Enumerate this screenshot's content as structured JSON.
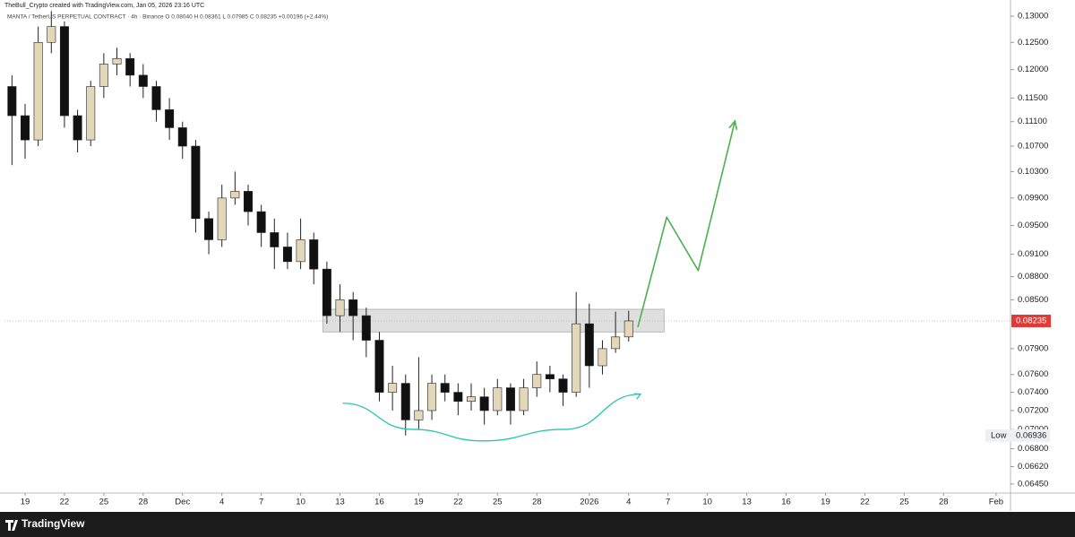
{
  "chart_data": {
    "type": "candlestick",
    "title": "TheBull_Crypto created with TradingView.com, Jan 05, 2026 23:16 UTC",
    "subtitle": "MANTA / TetherUS PERPETUAL CONTRACT · 4h · Binance  O 0.08040  H 0.08361  L 0.07985  C 0.08235  +0.00196 (+2.44%)",
    "brand": "TradingView",
    "log_scale": true,
    "up_color": "#e3d7b9",
    "down_color": "#111111",
    "x": [
      -1,
      0,
      1,
      2,
      3,
      4,
      5,
      6,
      7,
      8,
      9,
      10,
      11,
      12,
      13,
      14,
      15,
      16,
      17,
      18,
      19,
      20,
      21,
      22,
      23,
      24,
      25,
      26,
      27,
      28,
      29,
      30,
      31,
      32,
      33,
      34,
      35,
      36,
      37,
      38,
      39,
      40,
      41,
      42,
      43,
      44,
      45,
      46
    ],
    "open": [
      0.117,
      0.112,
      0.108,
      0.125,
      0.128,
      0.112,
      0.108,
      0.117,
      0.121,
      0.122,
      0.119,
      0.117,
      0.113,
      0.11,
      0.107,
      0.096,
      0.093,
      0.099,
      0.1,
      0.097,
      0.094,
      0.092,
      0.09,
      0.093,
      0.089,
      0.083,
      0.085,
      0.083,
      0.08,
      0.074,
      0.075,
      0.071,
      0.072,
      0.075,
      0.074,
      0.073,
      0.0735,
      0.072,
      0.0745,
      0.072,
      0.0745,
      0.076,
      0.0755,
      0.074,
      0.082,
      0.077,
      0.079,
      0.0804
    ],
    "high": [
      0.119,
      0.114,
      0.128,
      0.131,
      0.129,
      0.113,
      0.118,
      0.123,
      0.124,
      0.123,
      0.121,
      0.118,
      0.115,
      0.111,
      0.108,
      0.097,
      0.101,
      0.103,
      0.101,
      0.098,
      0.096,
      0.094,
      0.096,
      0.094,
      0.09,
      0.087,
      0.086,
      0.084,
      0.081,
      0.077,
      0.076,
      0.078,
      0.076,
      0.076,
      0.075,
      0.075,
      0.0745,
      0.0755,
      0.075,
      0.0755,
      0.0775,
      0.077,
      0.076,
      0.086,
      0.0845,
      0.08,
      0.0835,
      0.08361
    ],
    "low": [
      0.104,
      0.105,
      0.107,
      0.123,
      0.11,
      0.106,
      0.107,
      0.115,
      0.119,
      0.117,
      0.115,
      0.111,
      0.108,
      0.105,
      0.094,
      0.091,
      0.092,
      0.098,
      0.095,
      0.092,
      0.089,
      0.089,
      0.089,
      0.087,
      0.082,
      0.081,
      0.08,
      0.078,
      0.073,
      0.072,
      0.06936,
      0.07,
      0.071,
      0.073,
      0.0715,
      0.072,
      0.0705,
      0.0715,
      0.0705,
      0.0715,
      0.0735,
      0.074,
      0.0725,
      0.0735,
      0.0745,
      0.076,
      0.0785,
      0.07985
    ],
    "close": [
      0.112,
      0.108,
      0.125,
      0.128,
      0.112,
      0.108,
      0.117,
      0.121,
      0.122,
      0.119,
      0.117,
      0.113,
      0.11,
      0.107,
      0.096,
      0.093,
      0.099,
      0.1,
      0.097,
      0.094,
      0.092,
      0.09,
      0.093,
      0.089,
      0.083,
      0.085,
      0.083,
      0.08,
      0.074,
      0.075,
      0.071,
      0.072,
      0.075,
      0.074,
      0.073,
      0.0735,
      0.072,
      0.0745,
      0.072,
      0.0745,
      0.076,
      0.0755,
      0.074,
      0.082,
      0.077,
      0.079,
      0.0804,
      0.08235
    ],
    "xlim": [
      -1.57,
      75.1
    ],
    "ylim": [
      0.0638,
      0.1323
    ],
    "xticks": [
      {
        "value": 0,
        "label": "19"
      },
      {
        "value": 3,
        "label": "22"
      },
      {
        "value": 6,
        "label": "25"
      },
      {
        "value": 9,
        "label": "28"
      },
      {
        "value": 12,
        "label": "Dec"
      },
      {
        "value": 15,
        "label": "4"
      },
      {
        "value": 18,
        "label": "7"
      },
      {
        "value": 21,
        "label": "10"
      },
      {
        "value": 24,
        "label": "13"
      },
      {
        "value": 27,
        "label": "16"
      },
      {
        "value": 30,
        "label": "19"
      },
      {
        "value": 33,
        "label": "22"
      },
      {
        "value": 36,
        "label": "25"
      },
      {
        "value": 39,
        "label": "28"
      },
      {
        "value": 43,
        "label": "2026"
      },
      {
        "value": 46,
        "label": "4"
      },
      {
        "value": 49,
        "label": "7"
      },
      {
        "value": 52,
        "label": "10"
      },
      {
        "value": 55,
        "label": "13"
      },
      {
        "value": 58,
        "label": "16"
      },
      {
        "value": 61,
        "label": "19"
      },
      {
        "value": 64,
        "label": "22"
      },
      {
        "value": 67,
        "label": "25"
      },
      {
        "value": 70,
        "label": "28"
      },
      {
        "value": 74,
        "label": "Feb"
      }
    ],
    "yticks": [
      {
        "value": 0.13,
        "label": "0.13000"
      },
      {
        "value": 0.125,
        "label": "0.12500"
      },
      {
        "value": 0.12,
        "label": "0.12000"
      },
      {
        "value": 0.115,
        "label": "0.11500"
      },
      {
        "value": 0.111,
        "label": "0.11100"
      },
      {
        "value": 0.107,
        "label": "0.10700"
      },
      {
        "value": 0.103,
        "label": "0.10300"
      },
      {
        "value": 0.099,
        "label": "0.09900"
      },
      {
        "value": 0.095,
        "label": "0.09500"
      },
      {
        "value": 0.091,
        "label": "0.09100"
      },
      {
        "value": 0.088,
        "label": "0.08800"
      },
      {
        "value": 0.085,
        "label": "0.08500"
      },
      {
        "value": 0.079,
        "label": "0.07900"
      },
      {
        "value": 0.076,
        "label": "0.07600"
      },
      {
        "value": 0.074,
        "label": "0.07400"
      },
      {
        "value": 0.072,
        "label": "0.07200"
      },
      {
        "value": 0.07,
        "label": "0.07000"
      },
      {
        "value": 0.068,
        "label": "0.06800"
      },
      {
        "value": 0.0662,
        "label": "0.06620"
      },
      {
        "value": 0.0645,
        "label": "0.06450"
      }
    ],
    "last_price": 0.08235,
    "last_price_color": "#e53935",
    "low_marker": {
      "label": "Low",
      "value": 0.06936
    },
    "zone": {
      "x": [
        22.7,
        48.7
      ],
      "y": [
        0.081,
        0.0838
      ],
      "color": "#d9d9d9"
    },
    "arrow": {
      "x": [
        46.7,
        48.9,
        51.3,
        54.1
      ],
      "y": [
        0.0816,
        0.0962,
        0.0888,
        0.1111
      ],
      "color": "#4caf50"
    },
    "arc": {
      "x": [
        24.2,
        29.5,
        34.9,
        41.1,
        46.9
      ],
      "y": [
        0.0728,
        0.07,
        0.0688,
        0.07,
        0.0738
      ],
      "color": "#26c6b0"
    }
  }
}
